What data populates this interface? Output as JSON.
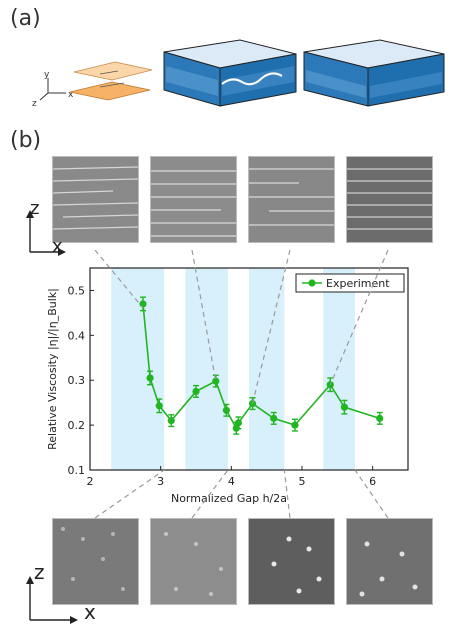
{
  "panels": {
    "a": "(a)",
    "b": "(b)"
  },
  "schematic": {
    "axis_y": "y",
    "axis_z": "z",
    "axis_x": "x"
  },
  "coords_top": {
    "z": "z",
    "x": "x"
  },
  "coords_bottom": {
    "z": "z",
    "x": "x"
  },
  "colors": {
    "series": "#22b522",
    "band": "#d7f0fb",
    "plate": "#f6b267",
    "sphere": "#1f6fae"
  },
  "chart_data": {
    "type": "line",
    "xlabel": "Normalized Gap h/2a",
    "ylabel": "Relative Viscosity |η|/|η_Bulk|",
    "xlim": [
      2,
      6.5
    ],
    "ylim": [
      0.1,
      0.55
    ],
    "xticks": [
      "2",
      "3",
      "4",
      "5",
      "6"
    ],
    "yticks": [
      "0.1",
      "0.2",
      "0.3",
      "0.4",
      "0.5"
    ],
    "legend": "top-right",
    "bands": [
      [
        2.3,
        3.05
      ],
      [
        3.35,
        3.95
      ],
      [
        4.25,
        4.75
      ],
      [
        5.3,
        5.75
      ]
    ],
    "series": [
      {
        "name": "Experiment",
        "x": [
          2.75,
          2.85,
          2.98,
          3.15,
          3.5,
          3.78,
          3.93,
          4.07,
          4.1,
          4.3,
          4.6,
          4.9,
          5.4,
          5.6,
          6.1
        ],
        "y": [
          0.47,
          0.305,
          0.243,
          0.21,
          0.275,
          0.298,
          0.233,
          0.193,
          0.205,
          0.248,
          0.215,
          0.2,
          0.29,
          0.24,
          0.215
        ],
        "err": [
          0.015,
          0.015,
          0.015,
          0.013,
          0.013,
          0.013,
          0.013,
          0.013,
          0.013,
          0.013,
          0.013,
          0.013,
          0.015,
          0.015,
          0.013
        ]
      }
    ]
  }
}
